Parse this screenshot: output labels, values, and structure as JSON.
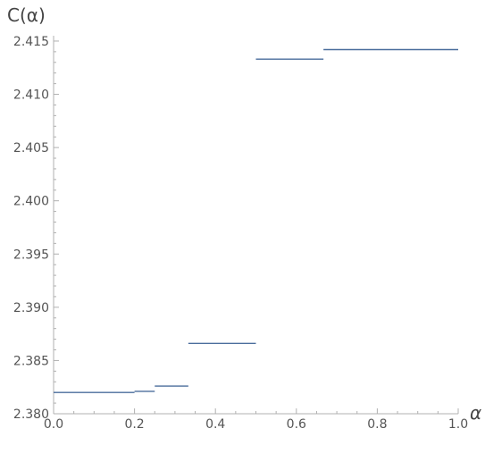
{
  "chart_data": {
    "type": "line",
    "title": "",
    "xlabel": "α",
    "ylabel": "C(α)",
    "xlim": [
      0.0,
      1.0
    ],
    "ylim": [
      2.38,
      2.4155
    ],
    "x_ticks": [
      0.0,
      0.2,
      0.4,
      0.6,
      0.8,
      1.0
    ],
    "x_tick_labels": [
      "0.0",
      "0.2",
      "0.4",
      "0.6",
      "0.8",
      "1.0"
    ],
    "y_ticks": [
      2.38,
      2.385,
      2.39,
      2.395,
      2.4,
      2.405,
      2.41,
      2.415
    ],
    "y_tick_labels": [
      "2.380",
      "2.385",
      "2.390",
      "2.395",
      "2.400",
      "2.405",
      "2.410",
      "2.415"
    ],
    "grid": false,
    "series": [
      {
        "color": "#4a6d9c",
        "segments": [
          {
            "x0": 0.0,
            "x1": 0.2,
            "y": 2.382
          },
          {
            "x0": 0.2,
            "x1": 0.25,
            "y": 2.3821
          },
          {
            "x0": 0.25,
            "x1": 0.333,
            "y": 2.3826
          },
          {
            "x0": 0.333,
            "x1": 0.5,
            "y": 2.3866
          },
          {
            "x0": 0.5,
            "x1": 0.667,
            "y": 2.4133
          },
          {
            "x0": 0.667,
            "x1": 1.0,
            "y": 2.4142
          }
        ]
      }
    ]
  }
}
